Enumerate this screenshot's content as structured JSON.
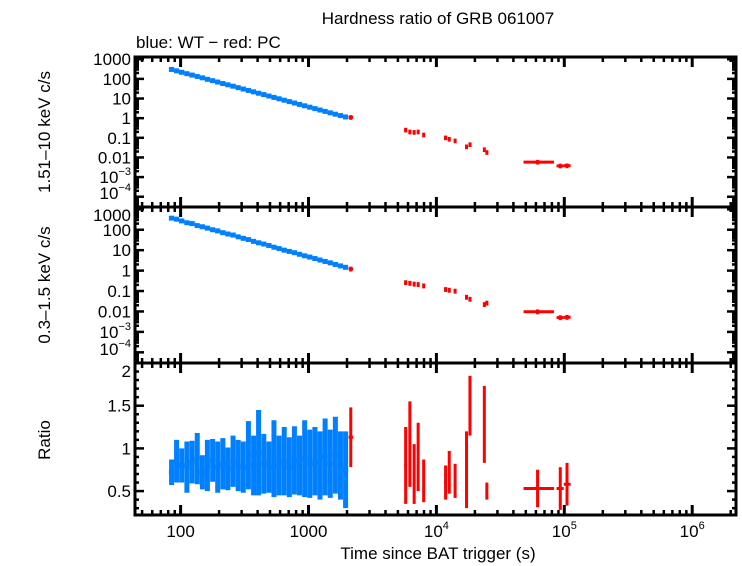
{
  "chart_data": {
    "type": "scatter",
    "title": "Hardness ratio of GRB 061007",
    "subtitle": "blue: WT − red: PC",
    "xlabel": "Time since BAT trigger (s)",
    "xscale": "log",
    "xlim": [
      44,
      2200000
    ],
    "x_ticks": [
      {
        "value": 100,
        "base": "100",
        "exp": ""
      },
      {
        "value": 1000,
        "base": "1000",
        "exp": ""
      },
      {
        "value": 10000,
        "base": "10",
        "exp": "4"
      },
      {
        "value": 100000,
        "base": "10",
        "exp": "5"
      },
      {
        "value": 1000000,
        "base": "10",
        "exp": "6"
      }
    ],
    "colors": {
      "WT": "#0080ff",
      "PC": "#ff0000"
    },
    "panels": [
      {
        "key": "hard",
        "ylabel": "1.51–10 keV c/s",
        "yscale": "log",
        "ylim": [
          3e-05,
          1300
        ],
        "y_ticks": [
          {
            "value": 1000,
            "base": "1000",
            "exp": ""
          },
          {
            "value": 100,
            "base": "100",
            "exp": ""
          },
          {
            "value": 10,
            "base": "10",
            "exp": ""
          },
          {
            "value": 1,
            "base": "1",
            "exp": ""
          },
          {
            "value": 0.1,
            "base": "0.1",
            "exp": ""
          },
          {
            "value": 0.01,
            "base": "0.01",
            "exp": ""
          },
          {
            "value": 0.001,
            "base": "10",
            "exp": "−3"
          },
          {
            "value": 0.0001,
            "base": "10",
            "exp": "−4"
          }
        ]
      },
      {
        "key": "soft",
        "ylabel": "0.3–1.5 keV c/s",
        "yscale": "log",
        "ylim": [
          3e-05,
          1300
        ],
        "y_ticks": [
          {
            "value": 1000,
            "base": "1000",
            "exp": ""
          },
          {
            "value": 100,
            "base": "100",
            "exp": ""
          },
          {
            "value": 10,
            "base": "10",
            "exp": ""
          },
          {
            "value": 1,
            "base": "1",
            "exp": ""
          },
          {
            "value": 0.1,
            "base": "0.1",
            "exp": ""
          },
          {
            "value": 0.01,
            "base": "0.01",
            "exp": ""
          },
          {
            "value": 0.001,
            "base": "10",
            "exp": "−3"
          },
          {
            "value": 0.0001,
            "base": "10",
            "exp": "−4"
          }
        ]
      },
      {
        "key": "ratio",
        "ylabel": "Ratio",
        "yscale": "linear",
        "ylim": [
          0.22,
          2
        ],
        "y_ticks": [
          {
            "value": 2,
            "base": "2",
            "exp": ""
          },
          {
            "value": 1.5,
            "base": "1.5",
            "exp": ""
          },
          {
            "value": 1,
            "base": "1",
            "exp": ""
          },
          {
            "value": 0.5,
            "base": "0.5",
            "exp": ""
          }
        ]
      }
    ],
    "series": [
      {
        "name": "WT",
        "columns": [
          "t",
          "t_lo",
          "t_hi",
          "hard",
          "soft",
          "ratio",
          "ratio_err"
        ],
        "points": [
          [
            85,
            81,
            89,
            302,
            370,
            0.72,
            0.15
          ],
          [
            93,
            89,
            97,
            256,
            330,
            0.85,
            0.25
          ],
          [
            102,
            97,
            107,
            217,
            270,
            0.8,
            0.2
          ],
          [
            112,
            107,
            117,
            184,
            220,
            0.78,
            0.3
          ],
          [
            123,
            117,
            129,
            156,
            200,
            0.84,
            0.25
          ],
          [
            135,
            129,
            141,
            133,
            160,
            0.88,
            0.3
          ],
          [
            148,
            141,
            155,
            113,
            140,
            0.72,
            0.2
          ],
          [
            162,
            155,
            170,
            95,
            120,
            0.8,
            0.3
          ],
          [
            178,
            170,
            186,
            81,
            100,
            0.86,
            0.25
          ],
          [
            195,
            186,
            204,
            69,
            88,
            0.78,
            0.3
          ],
          [
            214,
            204,
            224,
            58,
            72,
            0.82,
            0.3
          ],
          [
            234,
            224,
            245,
            49.8,
            62,
            0.76,
            0.25
          ],
          [
            257,
            245,
            270,
            42.3,
            55,
            0.85,
            0.3
          ],
          [
            282,
            270,
            295,
            35.8,
            45,
            0.8,
            0.3
          ],
          [
            309,
            295,
            324,
            30.4,
            38,
            0.78,
            0.3
          ],
          [
            339,
            324,
            355,
            25.8,
            33,
            0.92,
            0.4
          ],
          [
            372,
            355,
            389,
            21.9,
            27,
            0.8,
            0.35
          ],
          [
            407,
            389,
            427,
            18.6,
            23,
            0.95,
            0.5
          ],
          [
            447,
            427,
            468,
            15.8,
            20,
            0.82,
            0.35
          ],
          [
            490,
            468,
            513,
            13.4,
            17,
            0.78,
            0.3
          ],
          [
            537,
            513,
            562,
            11.4,
            14,
            0.88,
            0.45
          ],
          [
            589,
            562,
            617,
            9.7,
            12,
            0.8,
            0.35
          ],
          [
            646,
            617,
            676,
            8.2,
            10,
            0.85,
            0.4
          ],
          [
            708,
            676,
            741,
            6.95,
            8.7,
            0.78,
            0.35
          ],
          [
            776,
            741,
            813,
            5.9,
            7.5,
            0.86,
            0.4
          ],
          [
            851,
            813,
            891,
            5.0,
            6.3,
            0.8,
            0.35
          ],
          [
            933,
            891,
            977,
            4.26,
            5.3,
            0.88,
            0.45
          ],
          [
            1023,
            977,
            1072,
            3.61,
            4.6,
            0.82,
            0.4
          ],
          [
            1122,
            1072,
            1175,
            3.06,
            3.9,
            0.85,
            0.4
          ],
          [
            1230,
            1175,
            1288,
            2.6,
            3.3,
            0.8,
            0.4
          ],
          [
            1349,
            1288,
            1413,
            2.21,
            2.8,
            0.9,
            0.45
          ],
          [
            1479,
            1413,
            1549,
            1.87,
            2.4,
            0.82,
            0.4
          ],
          [
            1622,
            1549,
            1698,
            1.59,
            2.0,
            0.92,
            0.45
          ],
          [
            1778,
            1698,
            1862,
            1.35,
            1.7,
            0.8,
            0.4
          ],
          [
            1950,
            1862,
            2040,
            1.15,
            1.45,
            0.75,
            0.45
          ]
        ]
      },
      {
        "name": "PC",
        "columns": [
          "t",
          "t_lo",
          "t_hi",
          "hard",
          "soft",
          "ratio",
          "ratio_err"
        ],
        "points": [
          [
            2140,
            2060,
            2230,
            1.1,
            1.2,
            1.13,
            0.35
          ],
          [
            5750,
            5600,
            5900,
            0.25,
            0.26,
            0.8,
            0.45
          ],
          [
            6200,
            6050,
            6350,
            0.2,
            0.24,
            1.05,
            0.5
          ],
          [
            6700,
            6550,
            6850,
            0.19,
            0.22,
            0.7,
            0.35
          ],
          [
            7200,
            7050,
            7350,
            0.2,
            0.21,
            0.9,
            0.4
          ],
          [
            7950,
            7800,
            8100,
            0.14,
            0.18,
            0.62,
            0.25
          ],
          [
            11800,
            11500,
            12100,
            0.1,
            0.12,
            0.6,
            0.2
          ],
          [
            12600,
            12300,
            12900,
            0.085,
            0.11,
            0.72,
            0.25
          ],
          [
            14000,
            13700,
            14300,
            0.07,
            0.1,
            0.62,
            0.2
          ],
          [
            17200,
            16800,
            17600,
            0.035,
            0.05,
            0.75,
            0.45
          ],
          [
            18300,
            17900,
            18700,
            0.045,
            0.04,
            1.5,
            0.35
          ],
          [
            23700,
            23200,
            24200,
            0.025,
            0.022,
            1.28,
            0.45
          ],
          [
            24800,
            24300,
            25300,
            0.018,
            0.026,
            0.5,
            0.1
          ],
          [
            61800,
            48000,
            83000,
            0.0058,
            0.0097,
            0.53,
            0.22
          ],
          [
            93000,
            87000,
            99000,
            0.0037,
            0.005,
            0.53,
            0.25
          ],
          [
            105000,
            99000,
            112000,
            0.0038,
            0.0052,
            0.58,
            0.25
          ]
        ]
      }
    ]
  }
}
